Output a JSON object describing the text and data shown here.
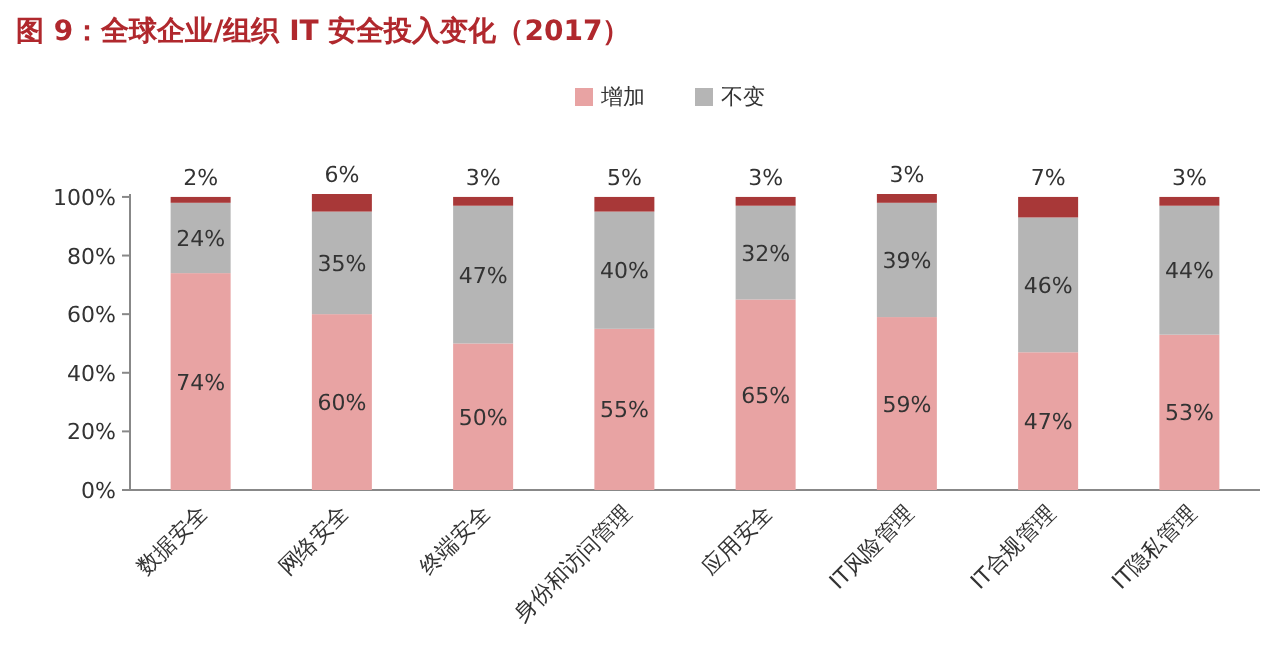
{
  "chart_data": {
    "type": "bar",
    "stacked": true,
    "title": "图 9：全球企业/组织 IT 安全投入变化（2017）",
    "categories": [
      "数据安全",
      "网络安全",
      "终端安全",
      "身份和访问管理",
      "应用安全",
      "IT风险管理",
      "IT合规管理",
      "IT隐私管理"
    ],
    "series": [
      {
        "name": "增加",
        "color": "#e8a3a3",
        "values": [
          74,
          60,
          50,
          55,
          65,
          59,
          47,
          53
        ],
        "value_labels": [
          "74%",
          "60%",
          "50%",
          "55%",
          "65%",
          "59%",
          "47%",
          "53%"
        ]
      },
      {
        "name": "不变",
        "color": "#b5b5b5",
        "values": [
          24,
          35,
          47,
          40,
          32,
          39,
          46,
          44
        ],
        "value_labels": [
          "24%",
          "35%",
          "47%",
          "40%",
          "32%",
          "39%",
          "46%",
          "44%"
        ]
      },
      {
        "color": "#a83838",
        "values": [
          2,
          6,
          3,
          5,
          3,
          3,
          7,
          3
        ],
        "value_labels": [
          "2%",
          "6%",
          "3%",
          "5%",
          "3%",
          "3%",
          "7%",
          "3%"
        ]
      }
    ],
    "ylim": [
      0,
      101
    ],
    "yticks": [
      {
        "value": 0,
        "label": "0%"
      },
      {
        "value": 20,
        "label": "20%"
      },
      {
        "value": 40,
        "label": "40%"
      },
      {
        "value": 60,
        "label": "60%"
      },
      {
        "value": 80,
        "label": "80%"
      },
      {
        "value": 100,
        "label": "100%"
      }
    ],
    "legend": "top"
  }
}
